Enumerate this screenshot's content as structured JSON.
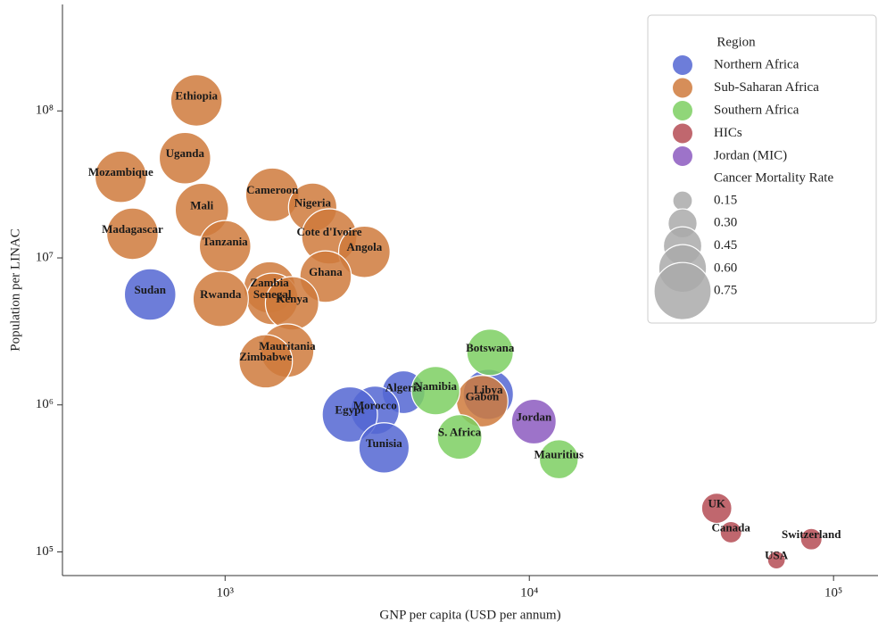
{
  "chart_data": {
    "type": "scatter",
    "x_label": "GNP per capita (USD per annum)",
    "y_label": "Population per LINAC",
    "x_log": true,
    "y_log": true,
    "xlim": [
      292,
      140000
    ],
    "ylim": [
      69000,
      530000000
    ],
    "xticks": [
      {
        "value": 1000,
        "label": "10³"
      },
      {
        "value": 10000,
        "label": "10⁴"
      },
      {
        "value": 100000,
        "label": "10⁵"
      }
    ],
    "yticks": [
      {
        "value": 100000,
        "label": "10⁵"
      },
      {
        "value": 1000000,
        "label": "10⁶"
      },
      {
        "value": 10000000,
        "label": "10⁷"
      },
      {
        "value": 100000000,
        "label": "10⁸"
      }
    ],
    "legend_position": "upper right",
    "legend_title": "Region",
    "size_legend": {
      "title": "Cancer Mortality Rate",
      "values": [
        0.15,
        {
          "value": 0.3,
          "label": "0.30"
        },
        0.45,
        {
          "value": 0.6,
          "label": "0.60"
        },
        0.75
      ]
    },
    "series": [
      {
        "name": "Northern Africa",
        "color": "#5366d2",
        "labels": [
          "Sudan",
          "Algeria",
          "Libya",
          "Morocco",
          "Egypt",
          "Tunisia"
        ],
        "x": [
          567,
          3860,
          7330,
          3110,
          2570,
          3330
        ],
        "y": [
          5640000,
          1220000,
          1180000,
          920000,
          860000,
          510000
        ],
        "sizes": [
          0.66,
          0.52,
          0.64,
          0.61,
          0.72,
          0.64
        ]
      },
      {
        "name": "Sub-Saharan Africa",
        "color": "#cf7a3c",
        "labels": [
          "Ethiopia",
          "Uganda",
          "Mozambique",
          "Mali",
          "Madagascar",
          "Tanzania",
          "Cameroon",
          "Nigeria",
          "Cote d'Ivoire",
          "Angola",
          "Ghana",
          "Zambia",
          "Senegal",
          "Kenya",
          "Rwanda",
          "Mauritania",
          "Zimbabwe",
          "Gabon"
        ],
        "x": [
          805,
          738,
          454,
          839,
          496,
          1000,
          1430,
          1940,
          2200,
          2870,
          2140,
          1400,
          1430,
          1660,
          967,
          1600,
          1360,
          7000
        ],
        "y": [
          118000000,
          47700000,
          35600000,
          21200000,
          14600000,
          12000000,
          26900000,
          22100000,
          14000000,
          11000000,
          7460000,
          6300000,
          5260000,
          4910000,
          5260000,
          2340000,
          1980000,
          1060000
        ],
        "sizes": [
          0.66,
          0.66,
          0.66,
          0.69,
          0.66,
          0.66,
          0.69,
          0.61,
          0.72,
          0.66,
          0.66,
          0.66,
          0.66,
          0.69,
          0.72,
          0.69,
          0.69,
          0.66
        ]
      },
      {
        "name": "Southern Africa",
        "color": "#7dcf62",
        "labels": [
          "Botswana",
          "Namibia",
          "S. Africa",
          "Mauritius"
        ],
        "x": [
          7430,
          4920,
          5900,
          12500
        ],
        "y": [
          2280000,
          1250000,
          605000,
          427000
        ],
        "sizes": [
          0.58,
          0.61,
          0.55,
          0.46
        ]
      },
      {
        "name": "HICs",
        "color": "#b54c55",
        "labels": [
          "UK",
          "Canada",
          "Switzerland",
          "USA"
        ],
        "x": [
          41300,
          46000,
          84500,
          64900
        ],
        "y": [
          198000,
          136000,
          122000,
          88000
        ],
        "sizes": [
          0.32,
          0.18,
          0.18,
          0.12
        ]
      },
      {
        "name": "Jordan (MIC)",
        "color": "#8c5bbf",
        "labels": [
          "Jordan"
        ],
        "x": [
          10350
        ],
        "y": [
          770000
        ],
        "sizes": [
          0.55
        ]
      }
    ]
  }
}
